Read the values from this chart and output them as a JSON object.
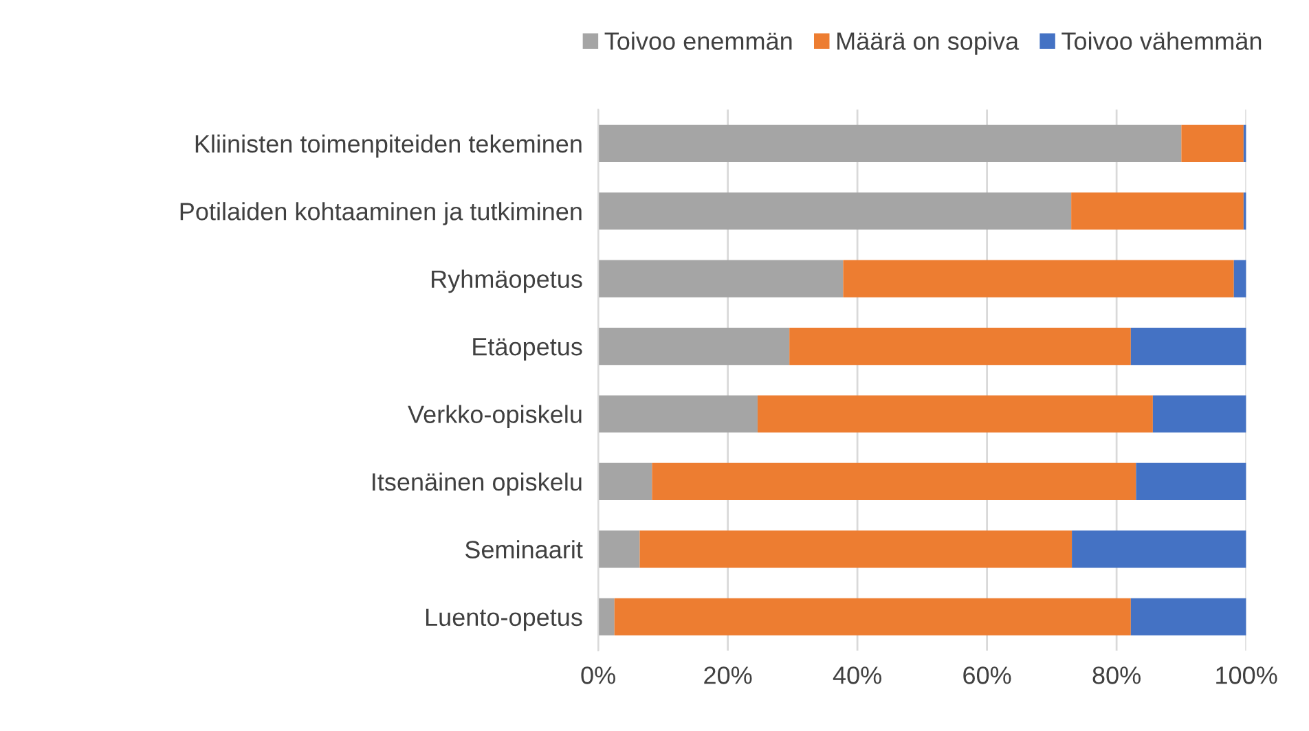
{
  "chart_data": {
    "type": "bar",
    "orientation": "horizontal",
    "stacked": true,
    "categories": [
      "Kliinisten toimenpiteiden tekeminen",
      "Potilaiden kohtaaminen ja tutkiminen",
      "Ryhmäopetus",
      "Etäopetus",
      "Verkko-opiskelu",
      "Itsenäinen opiskelu",
      "Seminaarit",
      "Luento-opetus"
    ],
    "series": [
      {
        "name": "Toivoo enemmän",
        "color": "#a5a5a5",
        "values": [
          90.0,
          73.0,
          37.8,
          29.5,
          24.6,
          8.3,
          6.4,
          2.5
        ]
      },
      {
        "name": "Määrä on sopiva",
        "color": "#ed7d31",
        "values": [
          9.6,
          26.6,
          60.3,
          52.7,
          61.0,
          74.7,
          66.7,
          79.7
        ]
      },
      {
        "name": "Toivoo vähemmän",
        "color": "#4472c4",
        "values": [
          0.4,
          0.4,
          1.9,
          17.8,
          14.4,
          17.0,
          26.9,
          17.8
        ]
      }
    ],
    "xlim": [
      0,
      100
    ],
    "xticks": [
      {
        "value": 0,
        "label": "0%"
      },
      {
        "value": 20,
        "label": "20%"
      },
      {
        "value": 40,
        "label": "40%"
      },
      {
        "value": 60,
        "label": "60%"
      },
      {
        "value": 80,
        "label": "80%"
      },
      {
        "value": 100,
        "label": "100%"
      }
    ],
    "grid": "x",
    "legend": "top"
  }
}
